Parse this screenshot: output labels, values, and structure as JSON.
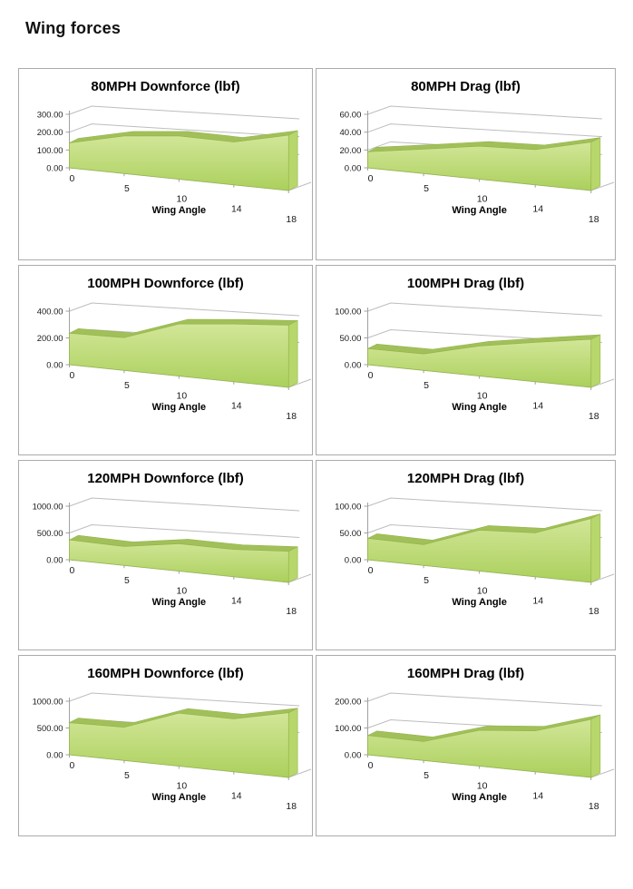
{
  "page": {
    "title": "Wing forces"
  },
  "colors": {
    "area_front_top": "#D2E698",
    "area_front_bottom": "#ABD05C",
    "area_top_band": "#A2C05A",
    "area_side": "#B7D76C",
    "area_edge": "#94B54A",
    "gridline": "#BDBDBD",
    "axis": "#A0A0A0",
    "box_border": "#ABABAB",
    "tick_text": "#1a1a1a"
  },
  "chart_data": [
    {
      "type": "area",
      "title": "80MPH Downforce (lbf)",
      "xlabel": "Wing Angle",
      "categories": [
        "0",
        "5",
        "10",
        "14",
        "18"
      ],
      "values": [
        140,
        185,
        190,
        170,
        200
      ],
      "ymax": 300,
      "yticks": [
        "0.00",
        "100.00",
        "200.00",
        "300.00"
      ],
      "grid": true,
      "legend": "none"
    },
    {
      "type": "area",
      "title": "80MPH Drag (lbf)",
      "xlabel": "Wing Angle",
      "categories": [
        "0",
        "5",
        "10",
        "14",
        "18"
      ],
      "values": [
        18,
        24,
        29,
        28,
        35
      ],
      "ymax": 60,
      "yticks": [
        "0.00",
        "20.00",
        "40.00",
        "60.00"
      ],
      "grid": true,
      "legend": "none"
    },
    {
      "type": "area",
      "title": "100MPH Downforce (lbf)",
      "xlabel": "Wing Angle",
      "categories": [
        "0",
        "5",
        "10",
        "14",
        "18"
      ],
      "values": [
        235,
        215,
        305,
        305,
        300
      ],
      "ymax": 400,
      "yticks": [
        "0.00",
        "200.00",
        "400.00"
      ],
      "grid": true,
      "legend": "none"
    },
    {
      "type": "area",
      "title": "100MPH Drag (lbf)",
      "xlabel": "Wing Angle",
      "categories": [
        "0",
        "5",
        "10",
        "14",
        "18"
      ],
      "values": [
        30,
        27,
        44,
        52,
        58
      ],
      "ymax": 100,
      "yticks": [
        "0.00",
        "50.00",
        "100.00"
      ],
      "grid": true,
      "legend": "none"
    },
    {
      "type": "area",
      "title": "120MPH Downforce (lbf)",
      "xlabel": "Wing Angle",
      "categories": [
        "0",
        "5",
        "10",
        "14",
        "18"
      ],
      "values": [
        370,
        310,
        400,
        360,
        375
      ],
      "ymax": 1000,
      "yticks": [
        "0.00",
        "500.00",
        "1000.00"
      ],
      "grid": true,
      "legend": "none"
    },
    {
      "type": "area",
      "title": "120MPH Drag (lbf)",
      "xlabel": "Wing Angle",
      "categories": [
        "0",
        "5",
        "10",
        "14",
        "18"
      ],
      "values": [
        40,
        34,
        60,
        58,
        77
      ],
      "ymax": 100,
      "yticks": [
        "0.00",
        "50.00",
        "100.00"
      ],
      "grid": true,
      "legend": "none"
    },
    {
      "type": "area",
      "title": "160MPH Downforce (lbf)",
      "xlabel": "Wing Angle",
      "categories": [
        "0",
        "5",
        "10",
        "14",
        "18"
      ],
      "values": [
        600,
        545,
        775,
        700,
        780
      ],
      "ymax": 1000,
      "yticks": [
        "0.00",
        "500.00",
        "1000.00"
      ],
      "grid": true,
      "legend": "none"
    },
    {
      "type": "area",
      "title": "160MPH Drag (lbf)",
      "xlabel": "Wing Angle",
      "categories": [
        "0",
        "5",
        "10",
        "14",
        "18"
      ],
      "values": [
        72,
        62,
        105,
        108,
        140
      ],
      "ymax": 200,
      "yticks": [
        "0.00",
        "100.00",
        "200.00"
      ],
      "grid": true,
      "legend": "none"
    }
  ]
}
